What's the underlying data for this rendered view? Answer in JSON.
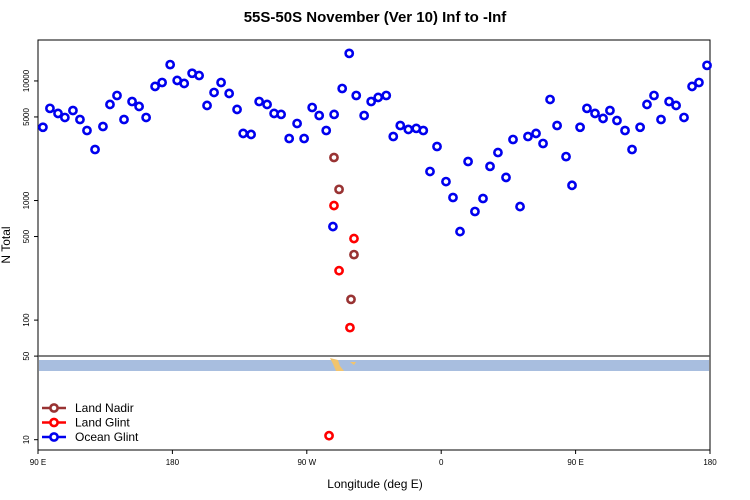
{
  "chart_data": {
    "type": "scatter",
    "title": "55S-50S November (Ver 10)   Inf to -Inf",
    "x_label": "Longitude (deg E)",
    "y_label": "N Total",
    "log_y": true,
    "xlim": [
      90,
      540
    ],
    "ylim": [
      8.2,
      22000
    ],
    "xticks": [
      {
        "value": 90,
        "label": "90 E"
      },
      180,
      {
        "value": 270,
        "label": "90 W"
      },
      {
        "value": 360,
        "label": "0"
      },
      {
        "value": 450,
        "label": "90 E"
      },
      {
        "value": 540,
        "label": "180"
      }
    ],
    "yticks": [
      10,
      50,
      100,
      500,
      1000,
      5000,
      10000
    ],
    "legend": "bottom-left",
    "series": [
      {
        "name": "Land Nadir",
        "color": "#993333",
        "x": [
          288.2,
          291.6,
          301.6,
          299.6
        ],
        "values": [
          2290,
          1240,
          353,
          149
        ]
      },
      {
        "name": "Land Glint",
        "color": "#ff0000",
        "x": [
          288.2,
          291.6,
          301.6,
          298.9,
          284.9
        ],
        "values": [
          908,
          259,
          481,
          86.5,
          10.8
        ]
      },
      {
        "name": "Ocean Glint",
        "color": "#0000ee",
        "x": [
          93.3,
          98.0,
          103.4,
          108.0,
          113.4,
          118.1,
          122.8,
          128.2,
          133.5,
          138.2,
          142.9,
          147.6,
          153.0,
          157.7,
          162.4,
          168.4,
          173.1,
          178.5,
          183.2,
          187.9,
          193.2,
          197.9,
          203.2,
          207.9,
          212.6,
          218.0,
          223.3,
          227.4,
          232.7,
          238.1,
          243.4,
          248.1,
          252.8,
          258.2,
          263.5,
          268.2,
          273.6,
          278.3,
          283.0,
          288.3,
          293.7,
          298.4,
          303.1,
          308.4,
          313.1,
          317.8,
          323.2,
          327.9,
          332.6,
          338.0,
          343.3,
          348.0,
          352.5,
          357.2,
          363.2,
          367.9,
          372.6,
          378.0,
          382.6,
          388.0,
          392.7,
          398.0,
          403.4,
          408.1,
          412.8,
          418.1,
          423.5,
          428.2,
          432.9,
          437.6,
          443.6,
          447.6,
          453.0,
          457.6,
          463.0,
          468.4,
          473.0,
          477.7,
          483.1,
          487.8,
          493.2,
          497.8,
          502.5,
          507.2,
          512.6,
          517.3,
          522.6,
          528.0,
          532.6,
          538.0,
          287.5
        ],
        "values": [
          4100,
          5900,
          5350,
          4950,
          5660,
          4760,
          3850,
          2670,
          4160,
          6360,
          7560,
          4760,
          6730,
          6120,
          4950,
          9000,
          9710,
          13700,
          10100,
          9530,
          11600,
          11100,
          6240,
          8010,
          9710,
          7860,
          5780,
          3640,
          3570,
          6730,
          6360,
          5350,
          5250,
          3300,
          4410,
          3300,
          6000,
          5140,
          3850,
          5250,
          8650,
          17000,
          7560,
          5140,
          6730,
          7280,
          7560,
          3430,
          4240,
          3930,
          4010,
          3850,
          1750,
          2830,
          1440,
          1060,
          550,
          2120,
          810,
          1040,
          1930,
          2520,
          1560,
          3240,
          890,
          3430,
          3640,
          3000,
          7000,
          4240,
          2330,
          1340,
          4100,
          5900,
          5350,
          4860,
          5660,
          4670,
          3850,
          2670,
          4100,
          6360,
          7560,
          4760,
          6730,
          6240,
          4950,
          9000,
          9710,
          13500,
          606
        ]
      }
    ]
  }
}
